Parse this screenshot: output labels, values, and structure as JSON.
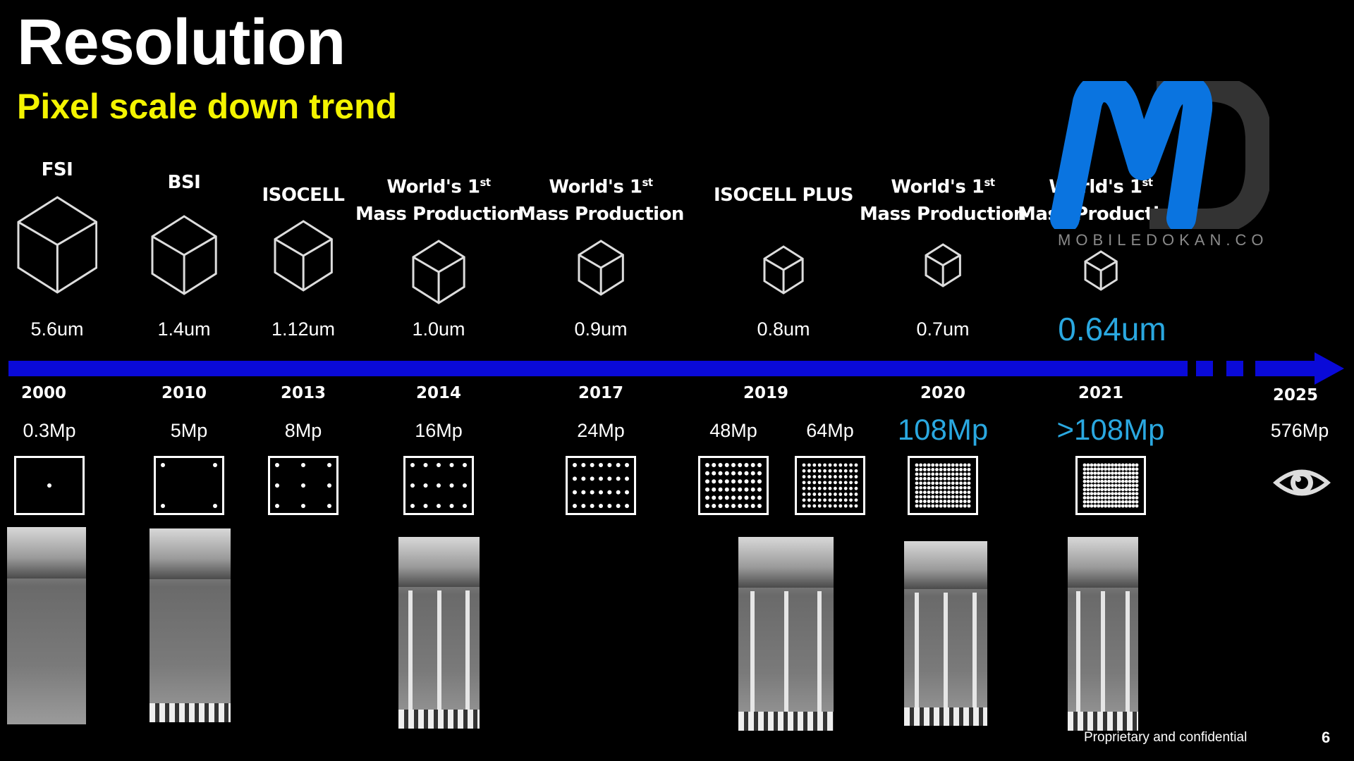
{
  "title": "Resolution",
  "subtitle": "Pixel scale down trend",
  "colors": {
    "accent_blue": "#2aa8e0",
    "timeline": "#0a0ad8",
    "subtitle": "#f4f400",
    "logo_m": "#0a74e0",
    "logo_d": "#333333"
  },
  "timeline": {
    "columns": [
      {
        "header": [
          "FSI"
        ],
        "size": "5.6um",
        "year": "2000",
        "mp": [
          "0.3Mp"
        ],
        "highlight_size": false,
        "highlight_mp": false
      },
      {
        "header": [
          "BSI"
        ],
        "size": "1.4um",
        "year": "2010",
        "mp": [
          "5Mp"
        ],
        "highlight_size": false,
        "highlight_mp": false
      },
      {
        "header": [
          "ISOCELL"
        ],
        "size": "1.12um",
        "year": "2013",
        "mp": [
          "8Mp"
        ],
        "highlight_size": false,
        "highlight_mp": false
      },
      {
        "header": [
          "World's 1",
          "st",
          "Mass Production"
        ],
        "size": "1.0um",
        "year": "2014",
        "mp": [
          "16Mp"
        ],
        "highlight_size": false,
        "highlight_mp": false
      },
      {
        "header": [
          "World's 1",
          "st",
          "Mass Production"
        ],
        "size": "0.9um",
        "year": "2017",
        "mp": [
          "24Mp"
        ],
        "highlight_size": false,
        "highlight_mp": false
      },
      {
        "header": [
          "ISOCELL PLUS"
        ],
        "size": "0.8um",
        "year": "2019",
        "mp": [
          "48Mp",
          "64Mp"
        ],
        "highlight_size": false,
        "highlight_mp": false
      },
      {
        "header": [
          "World's 1",
          "st",
          "Mass Production"
        ],
        "size": "0.7um",
        "year": "2020",
        "mp": [
          "108Mp"
        ],
        "highlight_size": false,
        "highlight_mp": true
      },
      {
        "header": [
          "World's 1",
          "st",
          "Mass Production"
        ],
        "size": "0.64um",
        "year": "2021",
        "mp": [
          ">108Mp"
        ],
        "highlight_size": true,
        "highlight_mp": true
      }
    ],
    "future": {
      "year": "2025",
      "mp": "576Mp",
      "icon": "eye-icon"
    }
  },
  "watermark": {
    "logo": "MD",
    "text": "MOBILEDOKAN.CO"
  },
  "footer": {
    "text": "Proprietary and confidential",
    "page": "6"
  }
}
